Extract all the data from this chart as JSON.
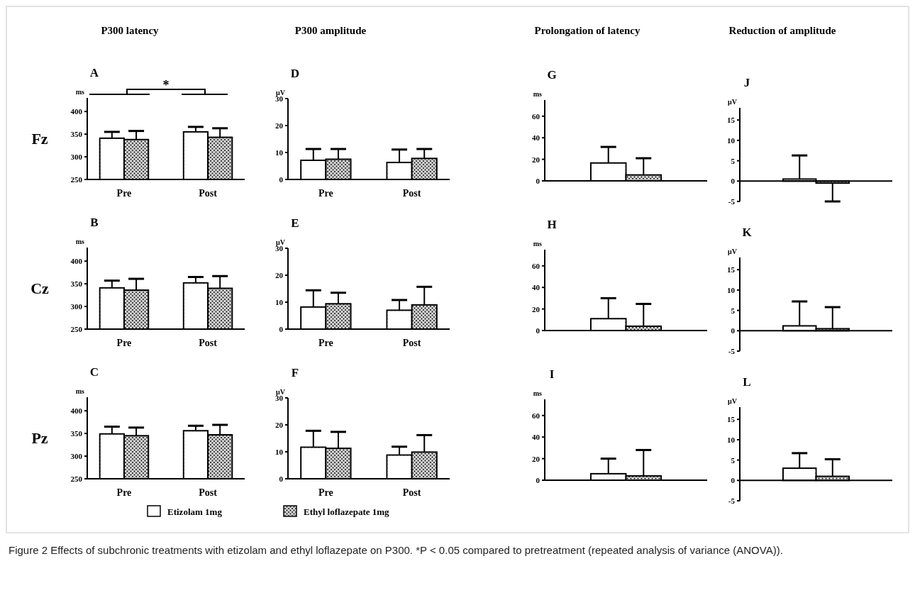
{
  "chart_data": [
    {
      "type": "bar",
      "title": "A",
      "subtitle": "P300 latency",
      "ylabel": "ms",
      "categories": [
        "Pre",
        "Post"
      ],
      "ylim": [
        250,
        430
      ],
      "yticks": [
        250,
        300,
        350,
        400
      ],
      "legend": "bottom",
      "annotations": [
        "Fz",
        "*",
        "Figure 2 Effects of subchronic treatments with etizolam and ethyl loflazepate on P300. *P < 0.05 compared to pretreatment (repeated analysis of variance (ANOVA))."
      ],
      "series": [
        {
          "name": "Etizolam 1mg",
          "color": "#ffffff",
          "values": [
            341,
            355
          ],
          "errors": [
            [
              341,
              355
            ],
            [
              355,
              366
            ]
          ]
        },
        {
          "name": "Ethyl loflazepate 1mg",
          "color": "#d0d0d0",
          "values": [
            338,
            343
          ],
          "errors": [
            [
              338,
              357
            ],
            [
              343,
              363
            ]
          ]
        }
      ]
    },
    {
      "type": "bar",
      "title": "B",
      "ylabel": "ms",
      "categories": [
        "Pre",
        "Post"
      ],
      "ylim": [
        250,
        430
      ],
      "yticks": [
        250,
        300,
        350,
        400
      ],
      "annotations": [
        "Cz"
      ],
      "series": [
        {
          "color": "#ffffff",
          "values": [
            341,
            352
          ],
          "errors": [
            [
              341,
              357
            ],
            [
              352,
              365
            ]
          ]
        },
        {
          "color": "#d0d0d0",
          "values": [
            336,
            340
          ],
          "errors": [
            [
              336,
              361
            ],
            [
              340,
              367
            ]
          ]
        }
      ]
    },
    {
      "type": "bar",
      "title": "C",
      "ylabel": "ms",
      "categories": [
        "Pre",
        "Post"
      ],
      "ylim": [
        250,
        430
      ],
      "yticks": [
        250,
        300,
        350,
        400
      ],
      "annotations": [
        "Pz"
      ],
      "series": [
        {
          "color": "#ffffff",
          "values": [
            349,
            356
          ],
          "errors": [
            [
              349,
              365
            ],
            [
              356,
              367
            ]
          ]
        },
        {
          "color": "#d0d0d0",
          "values": [
            345,
            347
          ],
          "errors": [
            [
              345,
              363
            ],
            [
              347,
              369
            ]
          ]
        }
      ]
    },
    {
      "type": "bar",
      "title": "D",
      "subtitle": "P300 amplitude",
      "ylabel": "μV",
      "categories": [
        "Pre",
        "Post"
      ],
      "ylim": [
        0,
        30
      ],
      "yticks": [
        0,
        10,
        20,
        30
      ],
      "series": [
        {
          "color": "#ffffff",
          "values": [
            7.1,
            6.3
          ],
          "errors": [
            [
              7.1,
              11.3
            ],
            [
              6.3,
              11.1
            ]
          ]
        },
        {
          "color": "#d0d0d0",
          "values": [
            7.5,
            7.8
          ],
          "errors": [
            [
              7.5,
              11.3
            ],
            [
              7.8,
              11.3
            ]
          ]
        }
      ]
    },
    {
      "type": "bar",
      "title": "E",
      "ylabel": "μV",
      "categories": [
        "Pre",
        "Post"
      ],
      "ylim": [
        0,
        30
      ],
      "yticks": [
        0,
        10,
        20,
        30
      ],
      "series": [
        {
          "color": "#ffffff",
          "values": [
            8.2,
            7.0
          ],
          "errors": [
            [
              8.2,
              14.4
            ],
            [
              7.0,
              10.8
            ]
          ]
        },
        {
          "color": "#d0d0d0",
          "values": [
            9.4,
            9.0
          ],
          "errors": [
            [
              9.4,
              13.5
            ],
            [
              9.0,
              15.7
            ]
          ]
        }
      ]
    },
    {
      "type": "bar",
      "title": "F",
      "ylabel": "μV",
      "categories": [
        "Pre",
        "Post"
      ],
      "ylim": [
        0,
        30
      ],
      "yticks": [
        0,
        10,
        20,
        30
      ],
      "series": [
        {
          "color": "#ffffff",
          "values": [
            11.7,
            8.8
          ],
          "errors": [
            [
              11.7,
              17.8
            ],
            [
              8.8,
              11.9
            ]
          ]
        },
        {
          "color": "#d0d0d0",
          "values": [
            11.3,
            9.9
          ],
          "errors": [
            [
              11.3,
              17.4
            ],
            [
              9.9,
              16.2
            ]
          ]
        }
      ]
    },
    {
      "type": "bar",
      "title": "G",
      "subtitle": "Prolongation of latency",
      "ylabel": "ms",
      "categories": [
        null
      ],
      "ylim": [
        0,
        75
      ],
      "yticks": [
        0,
        20,
        40,
        60
      ],
      "series": [
        {
          "color": "#ffffff",
          "values": [
            16.6
          ],
          "errors": [
            [
              16.6,
              31.5
            ]
          ]
        },
        {
          "color": "#d0d0d0",
          "values": [
            5.5
          ],
          "errors": [
            [
              5.5,
              21
            ]
          ]
        }
      ]
    },
    {
      "type": "bar",
      "title": "H",
      "ylabel": "ms",
      "categories": [
        null
      ],
      "ylim": [
        0,
        75
      ],
      "yticks": [
        0,
        20,
        40,
        60
      ],
      "series": [
        {
          "color": "#ffffff",
          "values": [
            11
          ],
          "errors": [
            [
              11,
              30
            ]
          ]
        },
        {
          "color": "#d0d0d0",
          "values": [
            4
          ],
          "errors": [
            [
              4,
              24.7
            ]
          ]
        }
      ]
    },
    {
      "type": "bar",
      "title": "I",
      "ylabel": "ms",
      "categories": [
        null
      ],
      "ylim": [
        0,
        75
      ],
      "yticks": [
        0,
        20,
        40,
        60
      ],
      "series": [
        {
          "color": "#ffffff",
          "values": [
            6
          ],
          "errors": [
            [
              6,
              20
            ]
          ]
        },
        {
          "color": "#d0d0d0",
          "values": [
            4
          ],
          "errors": [
            [
              4,
              28
            ]
          ]
        }
      ]
    },
    {
      "type": "bar",
      "title": "J",
      "subtitle": "Reduction of amplitude",
      "ylabel": "μV",
      "categories": [
        null
      ],
      "ylim": [
        -5,
        18
      ],
      "yticks": [
        -5,
        0,
        5,
        10,
        15
      ],
      "series": [
        {
          "color": "#ffffff",
          "values": [
            0.5
          ],
          "errors": [
            [
              0.5,
              6.3
            ]
          ]
        },
        {
          "color": "#d0d0d0",
          "values": [
            -0.5
          ],
          "errors": [
            [
              -5,
              -0.5
            ]
          ]
        }
      ]
    },
    {
      "type": "bar",
      "title": "K",
      "ylabel": "μV",
      "categories": [
        null
      ],
      "ylim": [
        -5,
        18
      ],
      "yticks": [
        -5,
        0,
        5,
        10,
        15
      ],
      "series": [
        {
          "color": "#ffffff",
          "values": [
            1.2
          ],
          "errors": [
            [
              1.2,
              7.2
            ]
          ]
        },
        {
          "color": "#d0d0d0",
          "values": [
            0.5
          ],
          "errors": [
            [
              0.5,
              5.8
            ]
          ]
        }
      ]
    },
    {
      "type": "bar",
      "title": "L",
      "ylabel": "μV",
      "categories": [
        null
      ],
      "ylim": [
        -5,
        18
      ],
      "yticks": [
        -5,
        0,
        5,
        10,
        15
      ],
      "series": [
        {
          "color": "#ffffff",
          "values": [
            3
          ],
          "errors": [
            [
              3,
              6.7
            ]
          ]
        },
        {
          "color": "#d0d0d0",
          "values": [
            1
          ],
          "errors": [
            [
              1,
              5.2
            ]
          ]
        }
      ]
    }
  ]
}
